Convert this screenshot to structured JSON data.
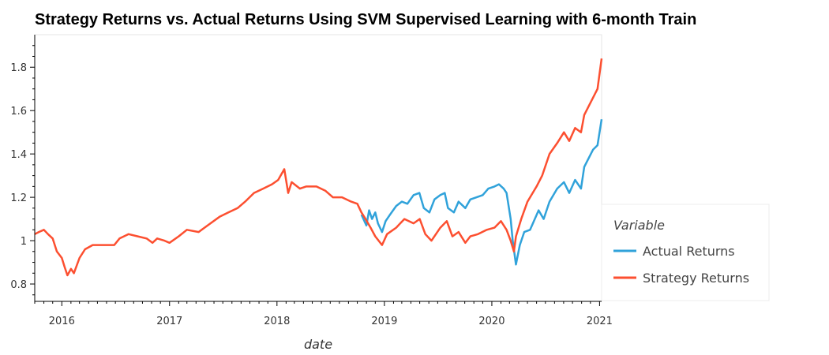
{
  "chart_data": {
    "type": "line",
    "title": "Strategy Returns vs. Actual Returns Using SVM Supervised Learning with 6-month Train",
    "xlabel": "date",
    "ylabel": "",
    "x_ticks": [
      "2016",
      "2017",
      "2018",
      "2019",
      "2020",
      "2021"
    ],
    "y_ticks": [
      "0.8",
      "1",
      "1.2",
      "1.4",
      "1.6",
      "1.8"
    ],
    "xlim": [
      "2015-10-01",
      "2021-01-08"
    ],
    "ylim": [
      0.72,
      1.95
    ],
    "legend": {
      "title": "Variable",
      "position": "right"
    },
    "series": [
      {
        "name": "Actual Returns",
        "color": "#30a2da",
        "points": [
          [
            "2018-10-15",
            1.12
          ],
          [
            "2018-11-01",
            1.07
          ],
          [
            "2018-11-10",
            1.14
          ],
          [
            "2018-11-20",
            1.1
          ],
          [
            "2018-12-01",
            1.13
          ],
          [
            "2018-12-10",
            1.08
          ],
          [
            "2018-12-24",
            1.04
          ],
          [
            "2019-01-05",
            1.09
          ],
          [
            "2019-01-20",
            1.12
          ],
          [
            "2019-02-10",
            1.16
          ],
          [
            "2019-03-01",
            1.18
          ],
          [
            "2019-03-20",
            1.17
          ],
          [
            "2019-04-10",
            1.21
          ],
          [
            "2019-04-30",
            1.22
          ],
          [
            "2019-05-15",
            1.15
          ],
          [
            "2019-06-03",
            1.13
          ],
          [
            "2019-06-20",
            1.19
          ],
          [
            "2019-07-10",
            1.21
          ],
          [
            "2019-07-25",
            1.22
          ],
          [
            "2019-08-05",
            1.15
          ],
          [
            "2019-08-25",
            1.13
          ],
          [
            "2019-09-10",
            1.18
          ],
          [
            "2019-10-03",
            1.15
          ],
          [
            "2019-10-20",
            1.19
          ],
          [
            "2019-11-10",
            1.2
          ],
          [
            "2019-12-01",
            1.21
          ],
          [
            "2019-12-20",
            1.24
          ],
          [
            "2020-01-10",
            1.25
          ],
          [
            "2020-01-25",
            1.26
          ],
          [
            "2020-02-10",
            1.24
          ],
          [
            "2020-02-20",
            1.22
          ],
          [
            "2020-03-05",
            1.1
          ],
          [
            "2020-03-12",
            1.0
          ],
          [
            "2020-03-23",
            0.89
          ],
          [
            "2020-04-05",
            0.98
          ],
          [
            "2020-04-20",
            1.04
          ],
          [
            "2020-05-10",
            1.05
          ],
          [
            "2020-06-08",
            1.14
          ],
          [
            "2020-06-25",
            1.1
          ],
          [
            "2020-07-15",
            1.18
          ],
          [
            "2020-08-10",
            1.24
          ],
          [
            "2020-09-02",
            1.27
          ],
          [
            "2020-09-20",
            1.22
          ],
          [
            "2020-10-10",
            1.28
          ],
          [
            "2020-10-30",
            1.24
          ],
          [
            "2020-11-10",
            1.34
          ],
          [
            "2020-11-25",
            1.38
          ],
          [
            "2020-12-10",
            1.42
          ],
          [
            "2020-12-25",
            1.44
          ],
          [
            "2021-01-08",
            1.56
          ]
        ]
      },
      {
        "name": "Strategy Returns",
        "color": "#fc4f30",
        "points": [
          [
            "2015-10-01",
            1.03
          ],
          [
            "2015-10-15",
            1.04
          ],
          [
            "2015-11-01",
            1.05
          ],
          [
            "2015-11-15",
            1.03
          ],
          [
            "2015-12-01",
            1.01
          ],
          [
            "2015-12-15",
            0.95
          ],
          [
            "2016-01-01",
            0.92
          ],
          [
            "2016-01-10",
            0.88
          ],
          [
            "2016-01-20",
            0.84
          ],
          [
            "2016-02-01",
            0.87
          ],
          [
            "2016-02-11",
            0.85
          ],
          [
            "2016-03-01",
            0.92
          ],
          [
            "2016-03-20",
            0.96
          ],
          [
            "2016-04-15",
            0.98
          ],
          [
            "2016-06-27",
            0.98
          ],
          [
            "2016-07-15",
            1.01
          ],
          [
            "2016-08-15",
            1.03
          ],
          [
            "2016-09-15",
            1.02
          ],
          [
            "2016-10-15",
            1.01
          ],
          [
            "2016-11-04",
            0.99
          ],
          [
            "2016-11-20",
            1.01
          ],
          [
            "2016-12-15",
            1.0
          ],
          [
            "2017-01-01",
            0.99
          ],
          [
            "2017-02-01",
            1.02
          ],
          [
            "2017-03-01",
            1.05
          ],
          [
            "2017-04-10",
            1.04
          ],
          [
            "2017-05-20",
            1.08
          ],
          [
            "2017-06-20",
            1.11
          ],
          [
            "2017-07-20",
            1.13
          ],
          [
            "2017-08-20",
            1.15
          ],
          [
            "2017-09-15",
            1.18
          ],
          [
            "2017-10-15",
            1.22
          ],
          [
            "2017-11-15",
            1.24
          ],
          [
            "2017-12-15",
            1.26
          ],
          [
            "2018-01-05",
            1.28
          ],
          [
            "2018-01-26",
            1.33
          ],
          [
            "2018-02-08",
            1.22
          ],
          [
            "2018-02-20",
            1.27
          ],
          [
            "2018-03-20",
            1.24
          ],
          [
            "2018-04-10",
            1.25
          ],
          [
            "2018-05-15",
            1.25
          ],
          [
            "2018-06-15",
            1.23
          ],
          [
            "2018-07-10",
            1.2
          ],
          [
            "2018-08-10",
            1.2
          ],
          [
            "2018-09-10",
            1.18
          ],
          [
            "2018-10-01",
            1.17
          ],
          [
            "2018-10-15",
            1.13
          ],
          [
            "2018-10-29",
            1.1
          ],
          [
            "2018-11-15",
            1.06
          ],
          [
            "2018-12-01",
            1.02
          ],
          [
            "2018-12-24",
            0.98
          ],
          [
            "2019-01-10",
            1.03
          ],
          [
            "2019-02-10",
            1.06
          ],
          [
            "2019-03-10",
            1.1
          ],
          [
            "2019-04-10",
            1.08
          ],
          [
            "2019-05-01",
            1.1
          ],
          [
            "2019-05-20",
            1.03
          ],
          [
            "2019-06-10",
            1.0
          ],
          [
            "2019-07-10",
            1.06
          ],
          [
            "2019-08-01",
            1.09
          ],
          [
            "2019-08-20",
            1.02
          ],
          [
            "2019-09-10",
            1.04
          ],
          [
            "2019-10-03",
            0.99
          ],
          [
            "2019-10-20",
            1.02
          ],
          [
            "2019-11-15",
            1.03
          ],
          [
            "2019-12-15",
            1.05
          ],
          [
            "2020-01-10",
            1.06
          ],
          [
            "2020-02-01",
            1.09
          ],
          [
            "2020-02-20",
            1.05
          ],
          [
            "2020-03-05",
            1.0
          ],
          [
            "2020-03-16",
            0.95
          ],
          [
            "2020-03-23",
            1.02
          ],
          [
            "2020-04-10",
            1.1
          ],
          [
            "2020-05-01",
            1.18
          ],
          [
            "2020-06-01",
            1.25
          ],
          [
            "2020-06-20",
            1.3
          ],
          [
            "2020-07-15",
            1.4
          ],
          [
            "2020-08-10",
            1.45
          ],
          [
            "2020-09-02",
            1.5
          ],
          [
            "2020-09-20",
            1.46
          ],
          [
            "2020-10-10",
            1.52
          ],
          [
            "2020-10-30",
            1.5
          ],
          [
            "2020-11-10",
            1.58
          ],
          [
            "2020-11-25",
            1.62
          ],
          [
            "2020-12-10",
            1.66
          ],
          [
            "2020-12-25",
            1.7
          ],
          [
            "2021-01-08",
            1.84
          ]
        ]
      }
    ]
  }
}
